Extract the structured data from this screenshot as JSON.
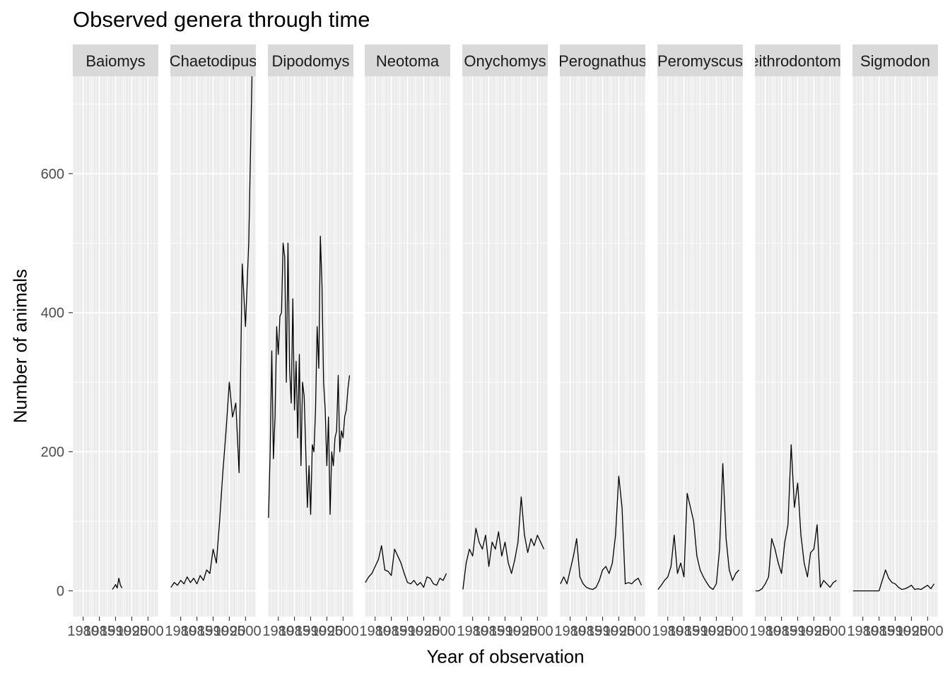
{
  "title": "Observed genera through time",
  "chart_data": {
    "type": "line",
    "facet_by": "genus",
    "facets": [
      "Baiomys",
      "Chaetodipus",
      "Dipodomys",
      "Neotoma",
      "Onychomys",
      "Perognathus",
      "Peromyscus",
      "Reithrodontomys",
      "Sigmodon"
    ],
    "xlabel": "Year of observation",
    "ylabel": "Number of animals",
    "x_ticks": [
      "1980",
      "1985",
      "1990",
      "1995",
      "2000"
    ],
    "y_ticks": [
      "0",
      "200",
      "400",
      "600"
    ],
    "xlim": [
      1976.8,
      2003.2
    ],
    "ylim": [
      -37,
      740
    ],
    "grid": true,
    "line_color": "#000000",
    "panel_background": "#ebebeb",
    "strip_background": "#d9d9d9",
    "series": [
      {
        "name": "Baiomys",
        "x": [
          1989,
          1989.5,
          1990,
          1990.5,
          1991,
          1991.5,
          1992
        ],
        "y": [
          2,
          5,
          9,
          4,
          18,
          8,
          4
        ]
      },
      {
        "name": "Chaetodipus",
        "x": [
          1977,
          1978,
          1979,
          1980,
          1981,
          1982,
          1983,
          1984,
          1985,
          1986,
          1987,
          1988,
          1989,
          1990,
          1991,
          1992,
          1993,
          1994,
          1995,
          1996,
          1997,
          1998,
          1999,
          2000,
          2001,
          2002
        ],
        "y": [
          5,
          12,
          8,
          15,
          10,
          20,
          12,
          18,
          10,
          22,
          15,
          30,
          25,
          60,
          40,
          100,
          170,
          230,
          300,
          250,
          270,
          170,
          470,
          380,
          500,
          740
        ]
      },
      {
        "name": "Dipodomys",
        "x": [
          1977,
          1977.5,
          1978,
          1978.5,
          1979,
          1979.5,
          1980,
          1980.5,
          1981,
          1981.5,
          1982,
          1982.5,
          1983,
          1983.5,
          1984,
          1984.5,
          1985,
          1985.5,
          1986,
          1986.5,
          1987,
          1987.5,
          1988,
          1988.5,
          1989,
          1989.5,
          1990,
          1990.5,
          1991,
          1991.5,
          1992,
          1992.5,
          1993,
          1993.5,
          1994,
          1994.5,
          1995,
          1995.5,
          1996,
          1996.5,
          1997,
          1997.5,
          1998,
          1998.5,
          1999,
          1999.5,
          2000,
          2000.5,
          2001,
          2001.5,
          2002
        ],
        "y": [
          105,
          200,
          345,
          190,
          250,
          380,
          340,
          395,
          400,
          500,
          480,
          300,
          500,
          320,
          270,
          420,
          260,
          330,
          220,
          340,
          180,
          300,
          280,
          200,
          120,
          180,
          110,
          210,
          200,
          260,
          380,
          320,
          510,
          440,
          300,
          260,
          180,
          250,
          110,
          200,
          180,
          220,
          230,
          310,
          200,
          230,
          220,
          250,
          260,
          290,
          310
        ]
      },
      {
        "name": "Neotoma",
        "x": [
          1977,
          1978,
          1979,
          1980,
          1981,
          1982,
          1983,
          1984,
          1985,
          1986,
          1987,
          1988,
          1989,
          1990,
          1991,
          1992,
          1993,
          1994,
          1995,
          1996,
          1997,
          1998,
          1999,
          2000,
          2001,
          2002
        ],
        "y": [
          12,
          20,
          25,
          35,
          45,
          65,
          30,
          28,
          22,
          60,
          50,
          40,
          25,
          12,
          10,
          15,
          8,
          12,
          5,
          20,
          18,
          10,
          8,
          18,
          15,
          25
        ]
      },
      {
        "name": "Onychomys",
        "x": [
          1977,
          1978,
          1979,
          1980,
          1981,
          1982,
          1983,
          1984,
          1985,
          1986,
          1987,
          1988,
          1989,
          1990,
          1991,
          1992,
          1993,
          1994,
          1995,
          1996,
          1997,
          1998,
          1999,
          2000,
          2001,
          2002
        ],
        "y": [
          2,
          40,
          60,
          50,
          90,
          70,
          60,
          80,
          35,
          70,
          60,
          85,
          50,
          70,
          40,
          25,
          45,
          70,
          135,
          80,
          55,
          75,
          65,
          80,
          70,
          60
        ]
      },
      {
        "name": "Perognathus",
        "x": [
          1977,
          1978,
          1979,
          1980,
          1981,
          1982,
          1983,
          1984,
          1985,
          1986,
          1987,
          1988,
          1989,
          1990,
          1991,
          1992,
          1993,
          1994,
          1995,
          1996,
          1997,
          1998,
          1999,
          2000,
          2001,
          2002
        ],
        "y": [
          10,
          20,
          10,
          30,
          50,
          75,
          20,
          10,
          5,
          3,
          2,
          5,
          15,
          30,
          35,
          25,
          40,
          80,
          165,
          120,
          10,
          12,
          10,
          15,
          18,
          8
        ]
      },
      {
        "name": "Peromyscus",
        "x": [
          1977,
          1978,
          1979,
          1980,
          1981,
          1982,
          1983,
          1984,
          1985,
          1986,
          1987,
          1988,
          1989,
          1990,
          1991,
          1992,
          1993,
          1994,
          1995,
          1996,
          1997,
          1998,
          1999,
          2000,
          2001,
          2002
        ],
        "y": [
          2,
          8,
          15,
          20,
          35,
          80,
          25,
          40,
          20,
          140,
          120,
          100,
          50,
          30,
          20,
          12,
          5,
          2,
          10,
          60,
          183,
          75,
          30,
          15,
          25,
          30
        ]
      },
      {
        "name": "Reithrodontomys",
        "x": [
          1977,
          1978,
          1979,
          1980,
          1981,
          1982,
          1983,
          1984,
          1985,
          1986,
          1987,
          1988,
          1989,
          1990,
          1991,
          1992,
          1993,
          1994,
          1995,
          1996,
          1997,
          1998,
          1999,
          2000,
          2001,
          2002
        ],
        "y": [
          0,
          0,
          3,
          10,
          20,
          75,
          60,
          40,
          25,
          70,
          95,
          210,
          120,
          155,
          80,
          40,
          20,
          55,
          60,
          95,
          5,
          15,
          10,
          5,
          12,
          15
        ]
      },
      {
        "name": "Sigmodon",
        "x": [
          1977,
          1978,
          1979,
          1980,
          1981,
          1982,
          1983,
          1984,
          1985,
          1986,
          1987,
          1988,
          1989,
          1990,
          1991,
          1992,
          1993,
          1994,
          1995,
          1996,
          1997,
          1998,
          1999,
          2000,
          2001,
          2002
        ],
        "y": [
          0,
          0,
          0,
          0,
          0,
          0,
          0,
          0,
          0,
          15,
          30,
          18,
          12,
          10,
          5,
          2,
          3,
          5,
          8,
          2,
          3,
          2,
          5,
          8,
          3,
          10
        ]
      }
    ]
  }
}
